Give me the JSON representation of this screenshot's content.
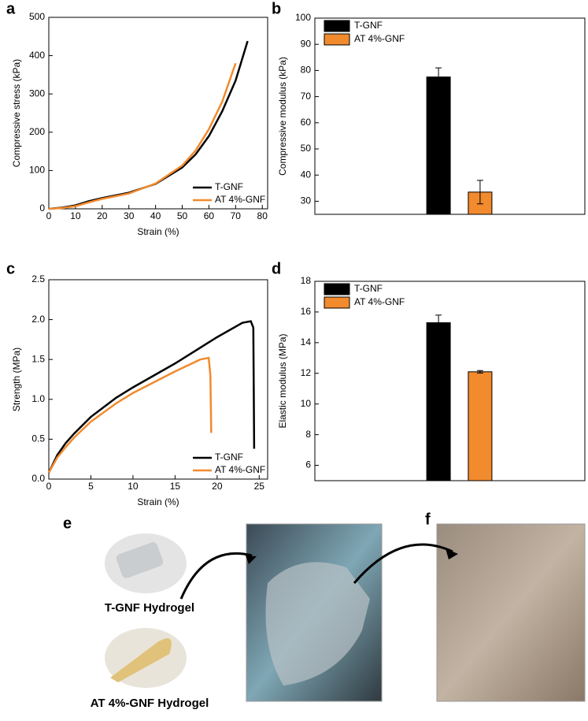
{
  "chart_data": [
    {
      "type": "line",
      "panel": "a",
      "xlabel": "Strain (%)",
      "ylabel": "Compressive stress (kPa)",
      "xlim": [
        0,
        82
      ],
      "xticks": [
        0,
        10,
        20,
        30,
        40,
        50,
        60,
        70,
        80
      ],
      "ylim": [
        0,
        500
      ],
      "yticks": [
        0,
        100,
        200,
        300,
        400,
        500
      ],
      "legend": "lower right",
      "series": [
        {
          "name": "T-GNF",
          "color": "#000000",
          "x": [
            0,
            5,
            10,
            15,
            20,
            30,
            40,
            50,
            55,
            60,
            65,
            70,
            74.5
          ],
          "values": [
            0,
            3,
            9,
            20,
            28,
            42,
            65,
            108,
            142,
            190,
            255,
            335,
            438
          ]
        },
        {
          "name": "AT 4%-GNF",
          "color": "#f28a2e",
          "x": [
            0,
            5,
            10,
            15,
            20,
            30,
            40,
            50,
            55,
            60,
            65,
            70
          ],
          "values": [
            0,
            2,
            7,
            17,
            26,
            40,
            66,
            113,
            152,
            208,
            280,
            380
          ]
        }
      ]
    },
    {
      "type": "bar",
      "panel": "b",
      "ylabel": "Compressive modulus (kPa)",
      "categories": [
        null
      ],
      "ylim": [
        25,
        100
      ],
      "yticks": [
        30,
        40,
        50,
        60,
        70,
        80,
        90,
        100
      ],
      "legend": "upper left",
      "series": [
        {
          "name": "T-GNF",
          "color": "#000000",
          "values": [
            77.5
          ],
          "errors": [
            3.5
          ]
        },
        {
          "name": "AT 4%-GNF",
          "color": "#f28a2e",
          "values": [
            33.5
          ],
          "errors": [
            4.5
          ]
        }
      ]
    },
    {
      "type": "line",
      "panel": "c",
      "xlabel": "Strain (%)",
      "ylabel": "Strength (MPa)",
      "xlim": [
        0,
        26
      ],
      "xticks": [
        0,
        5,
        10,
        15,
        20,
        25
      ],
      "ylim": [
        0,
        2.5
      ],
      "yticks": [
        {
          "value": 0,
          "label": "0.0"
        },
        0.5,
        {
          "value": 1,
          "label": "1.0"
        },
        1.5,
        {
          "value": 2,
          "label": "2.0"
        },
        2.5
      ],
      "legend": "lower right",
      "series": [
        {
          "name": "T-GNF",
          "color": "#000000",
          "x": [
            0,
            1,
            2,
            3,
            5,
            8,
            10,
            15,
            20,
            23,
            24,
            24.3,
            24.4
          ],
          "values": [
            0.08,
            0.3,
            0.45,
            0.57,
            0.78,
            1.02,
            1.15,
            1.45,
            1.78,
            1.96,
            1.98,
            1.9,
            0.38
          ]
        },
        {
          "name": "AT 4%-GNF",
          "color": "#f28a2e",
          "x": [
            0,
            1,
            2,
            3,
            5,
            8,
            10,
            15,
            18,
            19,
            19.2,
            19.3
          ],
          "values": [
            0.08,
            0.27,
            0.4,
            0.52,
            0.72,
            0.95,
            1.08,
            1.35,
            1.5,
            1.52,
            1.3,
            0.58
          ]
        }
      ]
    },
    {
      "type": "bar",
      "panel": "d",
      "ylabel": "Elastic modulus (MPa)",
      "categories": [
        null
      ],
      "ylim": [
        5,
        18
      ],
      "yticks": [
        6,
        8,
        10,
        12,
        14,
        16,
        18
      ],
      "legend": "upper left",
      "series": [
        {
          "name": "T-GNF",
          "color": "#000000",
          "values": [
            15.3
          ],
          "errors": [
            0.5
          ]
        },
        {
          "name": "AT 4%-GNF",
          "color": "#f28a2e",
          "values": [
            12.1
          ],
          "errors": [
            0.08
          ]
        }
      ]
    }
  ],
  "photos": {
    "panel_e": "e",
    "panel_f": "f",
    "label_t": "T-GNF Hydrogel",
    "label_at": "AT 4%-GNF Hydrogel"
  }
}
